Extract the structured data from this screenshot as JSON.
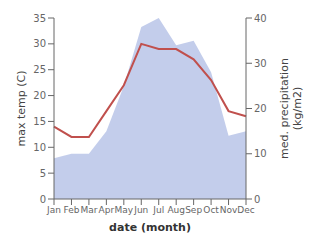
{
  "chart_data": {
    "type": "line",
    "categories": [
      "Jan",
      "Feb",
      "Mar",
      "Apr",
      "May",
      "Jun",
      "Jul",
      "Aug",
      "Sep",
      "Oct",
      "Nov",
      "Dec"
    ],
    "xlabel": "date (month)",
    "ylabel": "max temp (C)",
    "y2label": "med. precipitation\n(kg/m2)",
    "series": [
      {
        "type": "area",
        "axis": "y2",
        "color": "#b8c4e8",
        "values": [
          9,
          10,
          10,
          15,
          25,
          38,
          40,
          34,
          35,
          28,
          14,
          15
        ]
      },
      {
        "type": "line",
        "color": "#c0504d",
        "values": [
          14,
          12,
          12,
          17,
          22,
          30,
          29,
          29,
          27,
          23,
          17,
          16
        ]
      }
    ],
    "ylim": [
      0,
      35
    ],
    "yticks": [
      0,
      5,
      10,
      15,
      20,
      25,
      30,
      35
    ],
    "y2lim": [
      0,
      40
    ],
    "y2ticks": [
      0,
      10,
      20,
      30,
      40
    ]
  }
}
